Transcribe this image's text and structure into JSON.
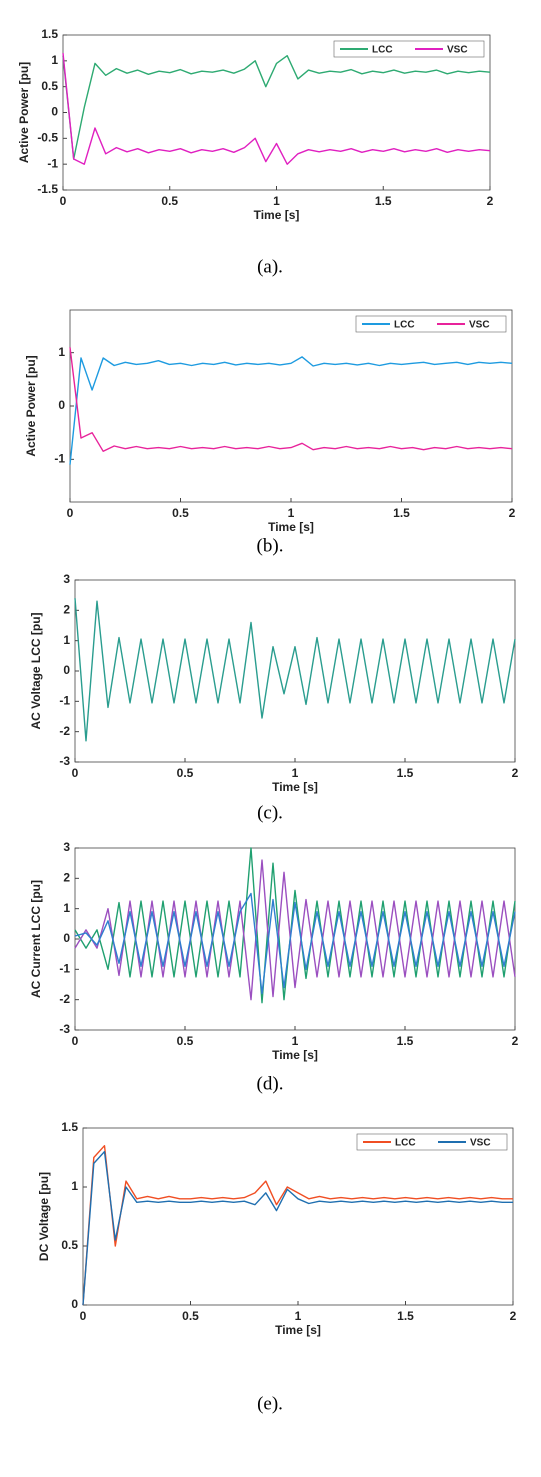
{
  "chart_data": [
    {
      "type": "line",
      "caption": "(a).",
      "xlabel": "Time [s]",
      "ylabel": "Active Power [pu]",
      "xlim": [
        0,
        2
      ],
      "xticks": [
        0,
        0.5,
        1,
        1.5,
        2
      ],
      "ylim": [
        -1.5,
        1.5
      ],
      "yticks": [
        -1.5,
        -1,
        -0.5,
        0,
        0.5,
        1,
        1.5
      ],
      "legend": "upper right",
      "x": [
        0,
        0.05,
        0.1,
        0.15,
        0.2,
        0.25,
        0.3,
        0.35,
        0.4,
        0.45,
        0.5,
        0.55,
        0.6,
        0.65,
        0.7,
        0.75,
        0.8,
        0.85,
        0.9,
        0.95,
        1,
        1.05,
        1.1,
        1.15,
        1.2,
        1.25,
        1.3,
        1.35,
        1.4,
        1.45,
        1.5,
        1.55,
        1.6,
        1.65,
        1.7,
        1.75,
        1.8,
        1.85,
        1.9,
        1.95,
        2
      ],
      "series": [
        {
          "name": "LCC",
          "color": "#2eaa72",
          "values": [
            1.1,
            -0.9,
            0.1,
            0.95,
            0.72,
            0.85,
            0.76,
            0.82,
            0.74,
            0.8,
            0.77,
            0.83,
            0.75,
            0.8,
            0.78,
            0.82,
            0.76,
            0.84,
            1.0,
            0.5,
            0.95,
            1.1,
            0.65,
            0.82,
            0.76,
            0.8,
            0.78,
            0.83,
            0.75,
            0.8,
            0.77,
            0.82,
            0.76,
            0.8,
            0.78,
            0.82,
            0.75,
            0.8,
            0.77,
            0.8,
            0.78
          ]
        },
        {
          "name": "VSC",
          "color": "#e020c0",
          "values": [
            1.15,
            -0.9,
            -1.0,
            -0.3,
            -0.8,
            -0.68,
            -0.76,
            -0.7,
            -0.78,
            -0.72,
            -0.75,
            -0.7,
            -0.78,
            -0.72,
            -0.75,
            -0.7,
            -0.77,
            -0.68,
            -0.5,
            -0.95,
            -0.6,
            -1.0,
            -0.8,
            -0.72,
            -0.76,
            -0.72,
            -0.75,
            -0.7,
            -0.77,
            -0.72,
            -0.75,
            -0.7,
            -0.76,
            -0.72,
            -0.75,
            -0.7,
            -0.77,
            -0.72,
            -0.75,
            -0.72,
            -0.74
          ]
        }
      ]
    },
    {
      "type": "line",
      "caption": "(b).",
      "xlabel": "Time [s]",
      "ylabel": "Active Power [pu]",
      "xlim": [
        0,
        2
      ],
      "xticks": [
        0,
        0.5,
        1,
        1.5,
        2
      ],
      "ylim": [
        -1.8,
        1.8
      ],
      "yticks": [
        -1,
        0,
        1
      ],
      "legend": "upper right",
      "x": [
        0,
        0.05,
        0.1,
        0.15,
        0.2,
        0.25,
        0.3,
        0.35,
        0.4,
        0.45,
        0.5,
        0.55,
        0.6,
        0.65,
        0.7,
        0.75,
        0.8,
        0.85,
        0.9,
        0.95,
        1,
        1.05,
        1.1,
        1.15,
        1.2,
        1.25,
        1.3,
        1.35,
        1.4,
        1.45,
        1.5,
        1.55,
        1.6,
        1.65,
        1.7,
        1.75,
        1.8,
        1.85,
        1.9,
        1.95,
        2
      ],
      "series": [
        {
          "name": "LCC",
          "color": "#1e9be0",
          "values": [
            -1.1,
            0.9,
            0.3,
            0.9,
            0.76,
            0.82,
            0.78,
            0.8,
            0.85,
            0.78,
            0.8,
            0.76,
            0.8,
            0.78,
            0.82,
            0.77,
            0.8,
            0.78,
            0.8,
            0.77,
            0.8,
            0.92,
            0.75,
            0.8,
            0.78,
            0.8,
            0.77,
            0.8,
            0.76,
            0.8,
            0.78,
            0.8,
            0.82,
            0.78,
            0.8,
            0.82,
            0.78,
            0.82,
            0.8,
            0.82,
            0.8
          ]
        },
        {
          "name": "VSC",
          "color": "#e8239b",
          "values": [
            1.1,
            -0.6,
            -0.5,
            -0.85,
            -0.75,
            -0.8,
            -0.76,
            -0.8,
            -0.78,
            -0.8,
            -0.76,
            -0.8,
            -0.78,
            -0.8,
            -0.76,
            -0.8,
            -0.78,
            -0.8,
            -0.76,
            -0.8,
            -0.78,
            -0.7,
            -0.82,
            -0.78,
            -0.8,
            -0.76,
            -0.8,
            -0.78,
            -0.8,
            -0.76,
            -0.8,
            -0.78,
            -0.82,
            -0.78,
            -0.8,
            -0.76,
            -0.8,
            -0.78,
            -0.8,
            -0.78,
            -0.8
          ]
        }
      ]
    },
    {
      "type": "line",
      "caption": "(c).",
      "xlabel": "Time [s]",
      "ylabel": "AC Voltage LCC [pu]",
      "xlim": [
        0,
        2
      ],
      "xticks": [
        0,
        0.5,
        1,
        1.5,
        2
      ],
      "ylim": [
        -3,
        3
      ],
      "yticks": [
        -3,
        -2,
        -1,
        0,
        1,
        2,
        3
      ],
      "x": [
        0,
        0.05,
        0.1,
        0.15,
        0.2,
        0.25,
        0.3,
        0.35,
        0.4,
        0.45,
        0.5,
        0.55,
        0.6,
        0.65,
        0.7,
        0.75,
        0.8,
        0.85,
        0.9,
        0.95,
        1,
        1.05,
        1.1,
        1.15,
        1.2,
        1.25,
        1.3,
        1.35,
        1.4,
        1.45,
        1.5,
        1.55,
        1.6,
        1.65,
        1.7,
        1.75,
        1.8,
        1.85,
        1.9,
        1.95,
        2
      ],
      "color": "#2a9d8f",
      "values": [
        2.4,
        -2.3,
        2.3,
        -1.2,
        1.1,
        -1.05,
        1.05,
        -1.05,
        1.05,
        -1.05,
        1.05,
        -1.05,
        1.05,
        -1.05,
        1.05,
        -1.05,
        1.6,
        -1.55,
        0.8,
        -0.75,
        0.8,
        -1.1,
        1.1,
        -1.05,
        1.05,
        -1.05,
        1.05,
        -1.05,
        1.05,
        -1.05,
        1.05,
        -1.05,
        1.05,
        -1.05,
        1.05,
        -1.05,
        1.05,
        -1.05,
        1.05,
        -1.05,
        1.05
      ]
    },
    {
      "type": "line",
      "caption": "(d).",
      "xlabel": "Time [s]",
      "ylabel": "AC Current LCC [pu]",
      "xlim": [
        0,
        2
      ],
      "xticks": [
        0,
        0.5,
        1,
        1.5,
        2
      ],
      "ylim": [
        -3,
        3
      ],
      "yticks": [
        -3,
        -2,
        -1,
        0,
        1,
        2,
        3
      ],
      "x": [
        0,
        0.05,
        0.1,
        0.15,
        0.2,
        0.25,
        0.3,
        0.35,
        0.4,
        0.45,
        0.5,
        0.55,
        0.6,
        0.65,
        0.7,
        0.75,
        0.8,
        0.85,
        0.9,
        0.95,
        1,
        1.05,
        1.1,
        1.15,
        1.2,
        1.25,
        1.3,
        1.35,
        1.4,
        1.45,
        1.5,
        1.55,
        1.6,
        1.65,
        1.7,
        1.75,
        1.8,
        1.85,
        1.9,
        1.95,
        2
      ],
      "series": [
        {
          "color": "#20a070",
          "values": [
            0.3,
            -0.3,
            0.3,
            -1.0,
            1.2,
            -1.25,
            1.25,
            -1.25,
            1.25,
            -1.25,
            1.25,
            -1.25,
            1.25,
            -1.25,
            1.25,
            -1.25,
            3.0,
            -2.1,
            2.5,
            -2.0,
            1.6,
            -1.3,
            1.25,
            -1.25,
            1.25,
            -1.25,
            1.25,
            -1.25,
            1.25,
            -1.25,
            1.25,
            -1.25,
            1.25,
            -1.25,
            1.25,
            -1.25,
            1.25,
            -1.25,
            1.25,
            -1.25,
            1.25
          ]
        },
        {
          "color": "#9b4fc0",
          "values": [
            -0.3,
            0.3,
            -0.3,
            1.0,
            -1.2,
            1.25,
            -1.25,
            1.25,
            -1.25,
            1.25,
            -1.25,
            1.25,
            -1.25,
            1.25,
            -1.25,
            1.25,
            -2.0,
            2.6,
            -1.9,
            2.2,
            -1.6,
            1.3,
            -1.25,
            1.25,
            -1.25,
            1.25,
            -1.25,
            1.25,
            -1.25,
            1.25,
            -1.25,
            1.25,
            -1.25,
            1.25,
            -1.25,
            1.25,
            -1.25,
            1.25,
            -1.25,
            1.25,
            -1.25
          ]
        },
        {
          "color": "#2f7fd0",
          "values": [
            0.1,
            0.2,
            -0.2,
            0.6,
            -0.8,
            0.9,
            -0.9,
            0.9,
            -0.9,
            0.9,
            -0.9,
            0.9,
            -0.9,
            0.9,
            -0.9,
            0.9,
            1.5,
            -1.8,
            1.3,
            -1.6,
            1.2,
            -1.0,
            0.9,
            -0.9,
            0.9,
            -0.9,
            0.9,
            -0.9,
            0.9,
            -0.9,
            0.9,
            -0.9,
            0.9,
            -0.9,
            0.9,
            -0.9,
            0.9,
            -0.9,
            0.9,
            -0.9,
            0.9
          ]
        }
      ]
    },
    {
      "type": "line",
      "caption": "(e).",
      "xlabel": "Time [s]",
      "ylabel": "DC Voltage [pu]",
      "xlim": [
        0,
        2
      ],
      "xticks": [
        0,
        0.5,
        1,
        1.5,
        2
      ],
      "ylim": [
        0,
        1.5
      ],
      "yticks": [
        0,
        0.5,
        1,
        1.5
      ],
      "legend": "upper right",
      "x": [
        0,
        0.05,
        0.1,
        0.15,
        0.2,
        0.25,
        0.3,
        0.35,
        0.4,
        0.45,
        0.5,
        0.55,
        0.6,
        0.65,
        0.7,
        0.75,
        0.8,
        0.85,
        0.9,
        0.95,
        1,
        1.05,
        1.1,
        1.15,
        1.2,
        1.25,
        1.3,
        1.35,
        1.4,
        1.45,
        1.5,
        1.55,
        1.6,
        1.65,
        1.7,
        1.75,
        1.8,
        1.85,
        1.9,
        1.95,
        2
      ],
      "series": [
        {
          "name": "LCC",
          "color": "#f04e23",
          "values": [
            0,
            1.25,
            1.35,
            0.5,
            1.05,
            0.9,
            0.92,
            0.9,
            0.92,
            0.9,
            0.9,
            0.91,
            0.9,
            0.91,
            0.9,
            0.91,
            0.95,
            1.05,
            0.85,
            1.0,
            0.95,
            0.9,
            0.92,
            0.9,
            0.91,
            0.9,
            0.91,
            0.9,
            0.91,
            0.9,
            0.91,
            0.9,
            0.91,
            0.9,
            0.91,
            0.9,
            0.91,
            0.9,
            0.91,
            0.9,
            0.9
          ]
        },
        {
          "name": "VSC",
          "color": "#1f6fb0",
          "values": [
            0,
            1.2,
            1.3,
            0.55,
            1.0,
            0.87,
            0.88,
            0.87,
            0.88,
            0.87,
            0.87,
            0.88,
            0.87,
            0.88,
            0.87,
            0.88,
            0.85,
            0.95,
            0.8,
            0.98,
            0.9,
            0.86,
            0.88,
            0.87,
            0.88,
            0.87,
            0.88,
            0.87,
            0.88,
            0.87,
            0.88,
            0.87,
            0.88,
            0.87,
            0.88,
            0.87,
            0.88,
            0.87,
            0.88,
            0.87,
            0.87
          ]
        }
      ]
    }
  ]
}
